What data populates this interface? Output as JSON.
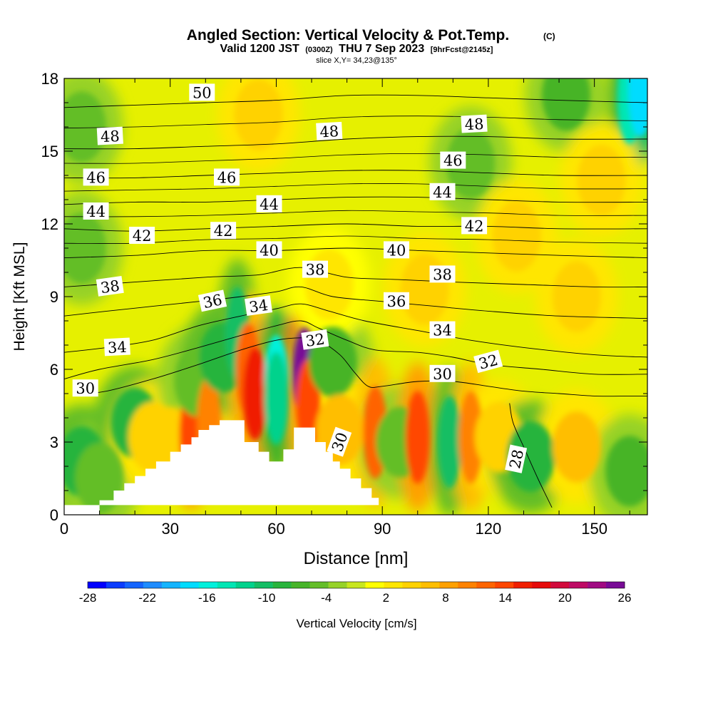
{
  "chart_data": {
    "type": "heatmap",
    "title": "Angled Section: Vertical Velocity & Pot.Temp.",
    "title_mark": "(C)",
    "subtitle_main": "Valid 1200 JST",
    "subtitle_utc": "(0300Z)",
    "subtitle_date": "THU 7 Sep 2023",
    "subtitle_fcst": "[9hrFcst@2145z]",
    "slice_label": "slice X,Y= 34,23@135°",
    "xlabel": "Distance [nm]",
    "ylabel": "Height [Kft MSL]",
    "xlim": [
      0,
      165
    ],
    "ylim": [
      0,
      18
    ],
    "x_ticks": [
      "0",
      "30",
      "60",
      "90",
      "120",
      "150"
    ],
    "y_ticks": [
      "0",
      "3",
      "6",
      "9",
      "12",
      "15",
      "18"
    ],
    "grid": false,
    "colorbar": {
      "label": "Vertical Velocity [cm/s]",
      "tick_labels": [
        "-28",
        "-22",
        "-16",
        "-10",
        "-4",
        "2",
        "8",
        "14",
        "20",
        "26"
      ],
      "colors": [
        "#0000ff",
        "#0a3cff",
        "#1464ff",
        "#1e8cff",
        "#14b4ff",
        "#00dcff",
        "#00f0dc",
        "#00e6b4",
        "#00d28c",
        "#14be64",
        "#28b43c",
        "#46b428",
        "#64be28",
        "#96d228",
        "#c8e61e",
        "#ffff00",
        "#ffe600",
        "#ffd200",
        "#ffbe00",
        "#ffa000",
        "#ff8200",
        "#ff6400",
        "#ff4600",
        "#f01e00",
        "#e60a0a",
        "#d20a3c",
        "#be0a64",
        "#a00a82",
        "#780a96"
      ]
    },
    "terrain_profile": {
      "x": [
        0,
        10,
        10,
        14,
        14,
        17,
        17,
        20,
        20,
        23,
        23,
        26,
        26,
        30,
        30,
        33,
        33,
        36,
        36,
        38,
        38,
        41,
        41,
        44,
        44,
        47,
        47,
        51,
        51,
        55,
        55,
        58,
        58,
        62,
        62,
        65,
        65,
        71,
        71,
        74,
        74,
        76,
        76,
        78,
        78,
        81,
        81,
        84,
        84,
        87,
        87,
        89,
        89,
        0
      ],
      "y": [
        0,
        0,
        0.6,
        0.6,
        1.0,
        1.0,
        1.3,
        1.3,
        1.6,
        1.6,
        1.9,
        1.9,
        2.2,
        2.2,
        2.6,
        2.6,
        2.9,
        2.9,
        3.2,
        3.2,
        3.5,
        3.5,
        3.7,
        3.7,
        3.9,
        3.9,
        3.9,
        3.9,
        3.0,
        3.0,
        2.6,
        2.6,
        2.2,
        2.2,
        2.7,
        2.7,
        3.6,
        3.6,
        3.0,
        3.0,
        2.6,
        2.6,
        2.2,
        2.2,
        1.9,
        1.9,
        1.5,
        1.5,
        1.1,
        1.1,
        0.7,
        0.7,
        0.4,
        0.4
      ]
    },
    "velocity_cells": [
      {
        "x": 5,
        "y": 2.2,
        "v": -8
      },
      {
        "x": 10,
        "y": 1.5,
        "v": -5
      },
      {
        "x": 20,
        "y": 3.8,
        "v": -8
      },
      {
        "x": 25,
        "y": 3.2,
        "v": 5
      },
      {
        "x": 30,
        "y": 3.0,
        "v": 5
      },
      {
        "x": 36,
        "y": 3.3,
        "v": 14
      },
      {
        "x": 38,
        "y": 5.5,
        "v": -5
      },
      {
        "x": 41,
        "y": 3.8,
        "v": 10
      },
      {
        "x": 45,
        "y": 6.5,
        "v": -8
      },
      {
        "x": 49,
        "y": 7.5,
        "v": -10
      },
      {
        "x": 52,
        "y": 6.0,
        "v": 12
      },
      {
        "x": 54,
        "y": 5.0,
        "v": 17
      },
      {
        "x": 60,
        "y": 5.5,
        "v": -16
      },
      {
        "x": 60,
        "y": 4.8,
        "v": -12
      },
      {
        "x": 68,
        "y": 5.8,
        "v": 26
      },
      {
        "x": 69,
        "y": 4.5,
        "v": 14
      },
      {
        "x": 76,
        "y": 6.3,
        "v": -6
      },
      {
        "x": 78,
        "y": 3.5,
        "v": 6
      },
      {
        "x": 88,
        "y": 3.4,
        "v": 12
      },
      {
        "x": 95,
        "y": 3.0,
        "v": -4
      },
      {
        "x": 100,
        "y": 3.2,
        "v": 15
      },
      {
        "x": 109,
        "y": 3.0,
        "v": -10
      },
      {
        "x": 115,
        "y": 3.2,
        "v": 11
      },
      {
        "x": 123,
        "y": 3.2,
        "v": 5
      },
      {
        "x": 132,
        "y": 2.4,
        "v": -8
      },
      {
        "x": 145,
        "y": 2.8,
        "v": 6
      },
      {
        "x": 160,
        "y": 1.8,
        "v": -6
      },
      {
        "x": 5,
        "y": 11.0,
        "v": -4
      },
      {
        "x": 5,
        "y": 16.0,
        "v": -5
      },
      {
        "x": 55,
        "y": 16.5,
        "v": 5
      },
      {
        "x": 115,
        "y": 14.5,
        "v": -4
      },
      {
        "x": 128,
        "y": 11.5,
        "v": 4
      },
      {
        "x": 142,
        "y": 17.3,
        "v": -6
      },
      {
        "x": 160,
        "y": 17.2,
        "v": -14
      },
      {
        "x": 163,
        "y": 17.5,
        "v": -18
      },
      {
        "x": 152,
        "y": 13.8,
        "v": 5
      },
      {
        "x": 75,
        "y": 9.5,
        "v": 3
      },
      {
        "x": 102,
        "y": 9.3,
        "v": 5
      },
      {
        "x": 145,
        "y": 9.0,
        "v": 4
      }
    ],
    "contours": [
      {
        "level": 28,
        "x": [
          138,
          134,
          130,
          127,
          126
        ],
        "y": [
          0.3,
          1.5,
          2.8,
          3.8,
          4.6
        ]
      },
      {
        "level": 30,
        "x": [
          5,
          12,
          25,
          38,
          50,
          60,
          67,
          72,
          78,
          82,
          86,
          90,
          100,
          110,
          120,
          130,
          140,
          150,
          160,
          165
        ],
        "y": [
          5.0,
          5.1,
          5.6,
          6.2,
          6.8,
          7.2,
          7.3,
          7.2,
          6.6,
          5.9,
          5.3,
          5.3,
          5.5,
          5.5,
          5.3,
          5.1,
          5.0,
          4.9,
          4.9,
          4.9
        ]
      },
      {
        "level": 32,
        "x": [
          0,
          10,
          25,
          38,
          50,
          60,
          67,
          72,
          80,
          88,
          100,
          110,
          120,
          135,
          150,
          165
        ],
        "y": [
          5.6,
          6.0,
          6.4,
          6.9,
          7.4,
          7.8,
          8.0,
          7.7,
          7.2,
          6.8,
          6.7,
          6.5,
          6.2,
          6.0,
          5.8,
          5.8
        ]
      },
      {
        "level": 34,
        "x": [
          0,
          12,
          25,
          38,
          50,
          60,
          67,
          75,
          85,
          100,
          115,
          130,
          150,
          165
        ],
        "y": [
          6.7,
          6.9,
          7.2,
          7.8,
          8.2,
          8.5,
          8.7,
          8.4,
          8.0,
          7.6,
          7.2,
          6.9,
          6.6,
          6.5
        ]
      },
      {
        "level": 36,
        "x": [
          0,
          12,
          25,
          38,
          50,
          60,
          67,
          76,
          90,
          105,
          120,
          140,
          165
        ],
        "y": [
          8.2,
          8.4,
          8.6,
          8.8,
          9.0,
          9.2,
          9.4,
          9.0,
          8.8,
          8.6,
          8.4,
          8.2,
          8.1
        ]
      },
      {
        "level": 38,
        "x": [
          0,
          20,
          40,
          55,
          67,
          80,
          95,
          110,
          130,
          150,
          165
        ],
        "y": [
          9.4,
          9.6,
          9.8,
          9.9,
          10.2,
          9.8,
          9.7,
          9.6,
          9.5,
          9.4,
          9.4
        ]
      },
      {
        "level": 40,
        "x": [
          0,
          20,
          40,
          60,
          80,
          100,
          120,
          140,
          165
        ],
        "y": [
          10.6,
          10.7,
          10.9,
          10.9,
          11.0,
          10.9,
          10.8,
          10.7,
          10.6
        ]
      },
      {
        "level": 42,
        "x": [
          0,
          20,
          40,
          60,
          80,
          100,
          120,
          140,
          165
        ],
        "y": [
          11.8,
          11.7,
          11.8,
          11.9,
          12.0,
          11.9,
          11.9,
          11.8,
          11.8
        ]
      },
      {
        "level": 44,
        "x": [
          0,
          20,
          40,
          60,
          80,
          100,
          120,
          140,
          165
        ],
        "y": [
          12.8,
          12.9,
          12.9,
          13.0,
          13.1,
          13.1,
          13.0,
          12.9,
          12.9
        ]
      },
      {
        "level": 46,
        "x": [
          0,
          20,
          40,
          60,
          80,
          100,
          120,
          140,
          165
        ],
        "y": [
          13.9,
          13.9,
          14.0,
          14.1,
          14.2,
          14.2,
          14.1,
          14.0,
          14.0
        ]
      },
      {
        "level": 48,
        "x": [
          0,
          20,
          40,
          60,
          80,
          100,
          120,
          140,
          165
        ],
        "y": [
          15.1,
          15.1,
          15.2,
          15.3,
          15.5,
          15.6,
          15.6,
          15.5,
          15.5
        ]
      },
      {
        "level": 50,
        "x": [
          0,
          20,
          40,
          60,
          80,
          100,
          120,
          140,
          165
        ],
        "y": [
          16.8,
          16.9,
          17.0,
          17.1,
          17.3,
          17.3,
          17.2,
          17.1,
          17.0
        ]
      }
    ],
    "contour_labels": [
      {
        "text": "50",
        "x": 39,
        "y": 17.4,
        "rot": 0
      },
      {
        "text": "48",
        "x": 13,
        "y": 15.6,
        "rot": -3
      },
      {
        "text": "48",
        "x": 75,
        "y": 15.8,
        "rot": -3
      },
      {
        "text": "48",
        "x": 116,
        "y": 16.1,
        "rot": -3
      },
      {
        "text": "46",
        "x": 9,
        "y": 13.9,
        "rot": 0
      },
      {
        "text": "46",
        "x": 46,
        "y": 13.9,
        "rot": 0
      },
      {
        "text": "46",
        "x": 110,
        "y": 14.6,
        "rot": 0
      },
      {
        "text": "44",
        "x": 9,
        "y": 12.5,
        "rot": 0
      },
      {
        "text": "44",
        "x": 58,
        "y": 12.8,
        "rot": 0
      },
      {
        "text": "44",
        "x": 107,
        "y": 13.3,
        "rot": 0
      },
      {
        "text": "42",
        "x": 22,
        "y": 11.5,
        "rot": 0
      },
      {
        "text": "42",
        "x": 45,
        "y": 11.7,
        "rot": 0
      },
      {
        "text": "42",
        "x": 116,
        "y": 11.9,
        "rot": 0
      },
      {
        "text": "40",
        "x": 58,
        "y": 10.9,
        "rot": 0
      },
      {
        "text": "40",
        "x": 94,
        "y": 10.9,
        "rot": 0
      },
      {
        "text": "38",
        "x": 13,
        "y": 9.4,
        "rot": -8
      },
      {
        "text": "38",
        "x": 71,
        "y": 10.1,
        "rot": 0
      },
      {
        "text": "38",
        "x": 107,
        "y": 9.9,
        "rot": 0
      },
      {
        "text": "36",
        "x": 42,
        "y": 8.8,
        "rot": -12
      },
      {
        "text": "36",
        "x": 94,
        "y": 8.8,
        "rot": 0
      },
      {
        "text": "34",
        "x": 55,
        "y": 8.6,
        "rot": -8
      },
      {
        "text": "34",
        "x": 15,
        "y": 6.9,
        "rot": -3
      },
      {
        "text": "34",
        "x": 107,
        "y": 7.6,
        "rot": 0
      },
      {
        "text": "32",
        "x": 71,
        "y": 7.2,
        "rot": -8
      },
      {
        "text": "32",
        "x": 120,
        "y": 6.3,
        "rot": -15
      },
      {
        "text": "30",
        "x": 6,
        "y": 5.2,
        "rot": 0
      },
      {
        "text": "30",
        "x": 107,
        "y": 5.8,
        "rot": 0
      },
      {
        "text": "30",
        "x": 78,
        "y": 3.0,
        "rot": -70
      },
      {
        "text": "28",
        "x": 128,
        "y": 2.3,
        "rot": -78
      }
    ]
  }
}
